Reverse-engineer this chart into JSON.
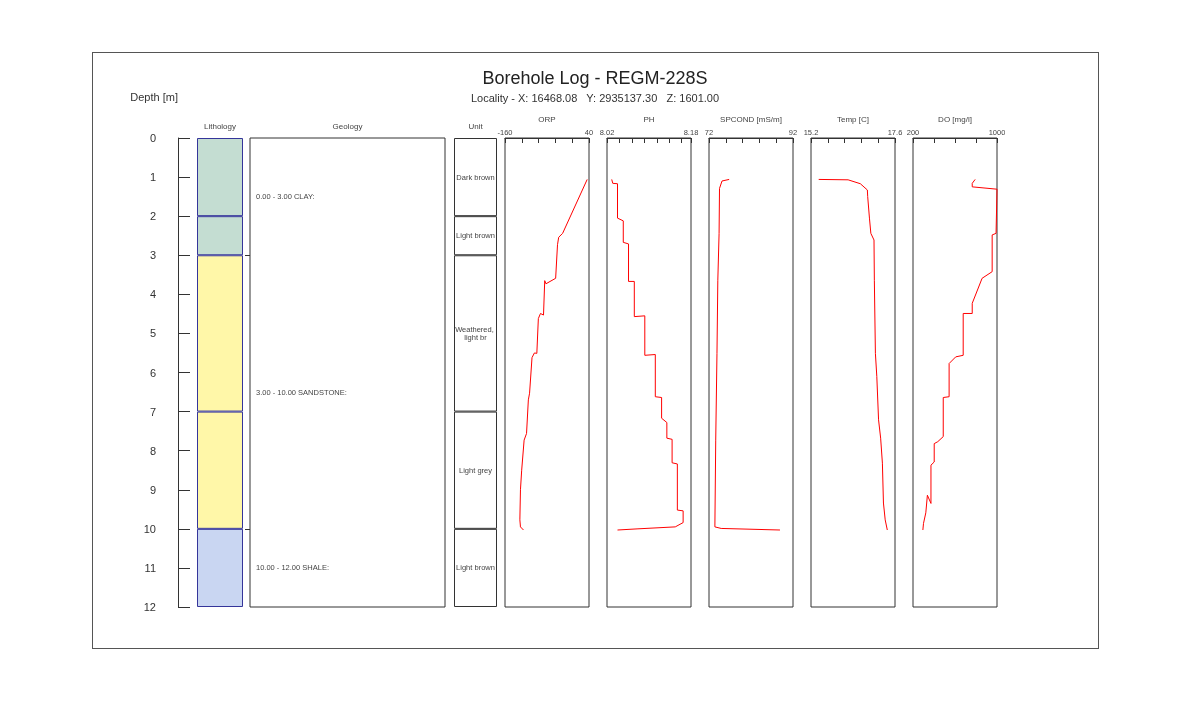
{
  "chart_data": [
    {
      "type": "other",
      "title": "Borehole Log - REGM-228S",
      "subtitle": "Locality - X: 16468.08   Y: 2935137.30   Z: 1601.00"
    },
    {
      "type": "bar",
      "ylabel": "Depth [m]",
      "categories": [
        "Lithology"
      ],
      "stacked": true,
      "ylim": [
        12,
        0
      ],
      "yticks": [
        0,
        1,
        2,
        3,
        4,
        5,
        6,
        7,
        8,
        9,
        10,
        11,
        12
      ],
      "series": [
        {
          "color": "#c4ddd2",
          "values": [
            2
          ]
        },
        {
          "color": "#c4ddd2",
          "values": [
            1
          ]
        },
        {
          "color": "#fff7a8",
          "values": [
            4
          ]
        },
        {
          "color": "#fff7a8",
          "values": [
            3
          ]
        },
        {
          "color": "#c9d6f2",
          "values": [
            2
          ]
        }
      ],
      "annotations": [
        "Geology",
        "0.00 - 3.00 CLAY:",
        "3.00 - 10.00 SANDSTONE:",
        "10.00 - 12.00 SHALE:"
      ]
    },
    {
      "type": "bar",
      "categories": [
        "Unit"
      ],
      "stacked": true,
      "ylim": [
        12,
        0
      ],
      "tick_labels": "x",
      "series": [
        {
          "color": "#ffffff",
          "values": [
            2
          ],
          "value_labels": [
            "Dark brown"
          ]
        },
        {
          "color": "#ffffff",
          "values": [
            1
          ],
          "value_labels": [
            "Light brown"
          ]
        },
        {
          "color": "#ffffff",
          "values": [
            4
          ],
          "value_labels": [
            "Weathered, light br"
          ]
        },
        {
          "color": "#ffffff",
          "values": [
            3
          ],
          "value_labels": [
            "Light grey"
          ]
        },
        {
          "color": "#ffffff",
          "values": [
            2
          ],
          "value_labels": [
            "Light brown"
          ]
        }
      ]
    },
    {
      "type": "line",
      "xlabel": "ORP",
      "xlim": [
        -160,
        40
      ],
      "xticks": [
        -160,
        {
          "value": -120,
          "label": null
        },
        {
          "value": -80,
          "label": null
        },
        {
          "value": -40,
          "label": null
        },
        {
          "value": 0,
          "label": null
        },
        40
      ],
      "ylim": [
        12,
        0
      ],
      "tick_labels": "x",
      "series": [
        {
          "color": "#ff0000",
          "x": [
            35.7,
            -22.8,
            -32.2,
            -35,
            -39.4,
            -62.5,
            -65.4,
            -68.3,
            -75.5,
            -80.6,
            -84.2,
            -90,
            -95.7,
            -101.5,
            -104.4,
            -108.7,
            -114.5,
            -120.3,
            -123.2,
            -124.6,
            -123.2,
            -116
          ],
          "values": [
            1.06,
            2.44,
            2.54,
            2.73,
            3.59,
            3.73,
            3.65,
            4.53,
            4.49,
            4.62,
            5.51,
            5.5,
            5.62,
            6.53,
            6.7,
            7.56,
            7.73,
            8.5,
            9.0,
            9.77,
            9.95,
            10.03
          ]
        }
      ]
    },
    {
      "type": "line",
      "xlabel": "PH",
      "xlim": [
        8.02,
        8.18
      ],
      "xticks": [
        8.02,
        {
          "value": 8.044,
          "label": null
        },
        {
          "value": 8.068,
          "label": null
        },
        {
          "value": 8.091,
          "label": null
        },
        {
          "value": 8.115,
          "label": null
        },
        {
          "value": 8.139,
          "label": null
        },
        {
          "value": 8.162,
          "label": null
        },
        8.18
      ],
      "ylim": [
        12,
        0
      ],
      "tick_labels": "x",
      "series": [
        {
          "color": "#ff0000",
          "x": [
            8.029,
            8.031,
            8.04,
            8.04,
            8.051,
            8.051,
            8.061,
            8.061,
            8.072,
            8.072,
            8.092,
            8.092,
            8.112,
            8.112,
            8.124,
            8.124,
            8.134,
            8.134,
            8.144,
            8.144,
            8.154,
            8.154,
            8.165,
            8.165,
            8.15,
            8.079,
            8.04
          ],
          "values": [
            1.06,
            1.16,
            1.17,
            2.05,
            2.12,
            2.67,
            2.71,
            3.67,
            3.67,
            4.57,
            4.55,
            5.56,
            5.54,
            6.62,
            6.64,
            7.17,
            7.28,
            7.68,
            7.71,
            8.31,
            8.34,
            9.52,
            9.54,
            9.84,
            9.95,
            10.0,
            10.03
          ]
        }
      ]
    },
    {
      "type": "line",
      "xlabel": "SPCOND [mS/m]",
      "xlim": [
        72,
        92
      ],
      "xticks": [
        72,
        {
          "value": 76,
          "label": null
        },
        {
          "value": 80,
          "label": null
        },
        {
          "value": 84,
          "label": null
        },
        {
          "value": 88,
          "label": null
        },
        92
      ],
      "ylim": [
        12,
        0
      ],
      "tick_labels": "x",
      "series": [
        {
          "color": "#ff0000",
          "x": [
            76.8,
            75.1,
            74.5,
            74.4,
            74.1,
            73.9,
            73.6,
            73.4,
            74.9,
            88.9
          ],
          "values": [
            1.06,
            1.1,
            1.29,
            2.44,
            3.64,
            5.51,
            7.73,
            9.95,
            9.99,
            10.03
          ]
        }
      ]
    },
    {
      "type": "line",
      "xlabel": "Temp [C]",
      "xlim": [
        15.2,
        17.6
      ],
      "xticks": [
        15.2,
        {
          "value": 15.68,
          "label": null
        },
        {
          "value": 16.16,
          "label": null
        },
        {
          "value": 16.64,
          "label": null
        },
        {
          "value": 17.12,
          "label": null
        },
        17.6
      ],
      "ylim": [
        12,
        0
      ],
      "tick_labels": "x",
      "series": [
        {
          "color": "#ff0000",
          "x": [
            15.42,
            16.26,
            16.61,
            16.81,
            16.82,
            16.87,
            16.91,
            17.0,
            17.01,
            17.04,
            17.08,
            17.13,
            17.19,
            17.24,
            17.27,
            17.32,
            17.38
          ],
          "values": [
            1.06,
            1.07,
            1.17,
            1.33,
            1.5,
            2.05,
            2.44,
            2.61,
            3.64,
            5.51,
            6.1,
            7.21,
            7.68,
            8.32,
            9.34,
            9.77,
            10.03
          ]
        }
      ]
    },
    {
      "type": "line",
      "xlabel": "DO [mg/l]",
      "xlim": [
        200,
        1000
      ],
      "xticks": [
        200,
        {
          "value": 400,
          "label": null
        },
        {
          "value": 600,
          "label": null
        },
        {
          "value": 800,
          "label": null
        },
        1000
      ],
      "ylim": [
        12,
        0
      ],
      "tick_labels": "x",
      "series": [
        {
          "color": "#ff0000",
          "x": [
            792,
            764,
            764,
            1000,
            991,
            954,
            954,
            858,
            764,
            764,
            678,
            678,
            607,
            544,
            544,
            488,
            488,
            436,
            402,
            402,
            371,
            371,
            337,
            322,
            300,
            294
          ],
          "values": [
            1.06,
            1.16,
            1.25,
            1.31,
            2.44,
            2.48,
            3.42,
            3.59,
            4.23,
            4.49,
            4.49,
            5.56,
            5.6,
            5.77,
            6.62,
            6.64,
            7.64,
            7.77,
            7.82,
            8.29,
            8.37,
            9.35,
            9.14,
            9.59,
            9.86,
            10.03
          ]
        }
      ]
    }
  ]
}
